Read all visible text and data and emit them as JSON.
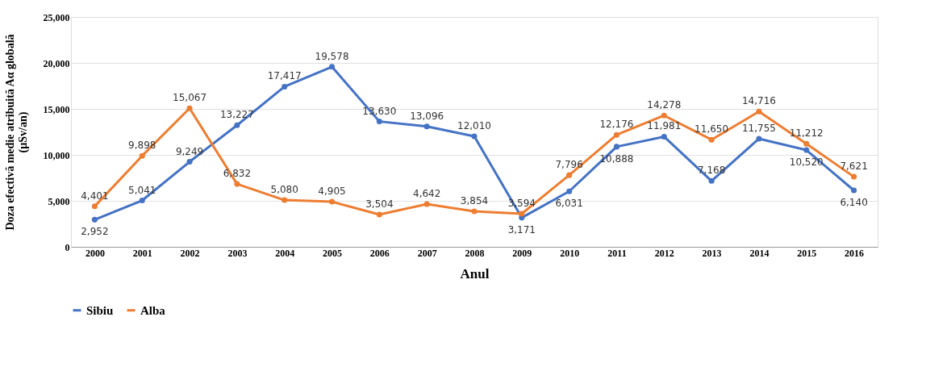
{
  "chart_data": {
    "type": "line",
    "xlabel": "Anul",
    "ylabel": "Doza efectivă medie atribuită Aα globală\n(µSv/an)",
    "categories": [
      "2000",
      "2001",
      "2002",
      "2003",
      "2004",
      "2005",
      "2006",
      "2007",
      "2008",
      "2009",
      "2010",
      "2011",
      "2012",
      "2013",
      "2014",
      "2015",
      "2016"
    ],
    "series": [
      {
        "name": "Sibiu",
        "color": "#4472c4",
        "values": [
          2952,
          5041,
          9249,
          13227,
          17417,
          19578,
          13630,
          13096,
          12010,
          3171,
          6031,
          10888,
          11981,
          7168,
          11755,
          10520,
          6140
        ],
        "value_labels": [
          "2,952",
          "5,041",
          "9,249",
          "13,227",
          "17,417",
          "19,578",
          "13,630",
          "13,096",
          "12,010",
          "3,171",
          "6,031",
          "10,888",
          "11,981",
          "7,168",
          "11,755",
          "10,520",
          "6,140"
        ]
      },
      {
        "name": "Alba",
        "color": "#ed7d31",
        "values": [
          4401,
          9898,
          15067,
          6832,
          5080,
          4905,
          3504,
          4642,
          3854,
          3594,
          7796,
          12176,
          14278,
          11650,
          14716,
          11212,
          7621
        ],
        "value_labels": [
          "4,401",
          "9,898",
          "15,067",
          "6,832",
          "5,080",
          "4,905",
          "3,504",
          "4,642",
          "3,854",
          "3,594",
          "7,796",
          "12,176",
          "14,278",
          "11,650",
          "14,716",
          "11,212",
          "7,621"
        ]
      }
    ],
    "ylim": [
      0,
      25000
    ],
    "yticks": [
      {
        "value": 0,
        "label": "0"
      },
      {
        "value": 5000,
        "label": "5,000"
      },
      {
        "value": 10000,
        "label": "10,000"
      },
      {
        "value": 15000,
        "label": "15,000"
      },
      {
        "value": 20000,
        "label": "20,000"
      },
      {
        "value": 25000,
        "label": "25,000"
      }
    ],
    "grid": "y",
    "legend": "bottom",
    "marker": "circle",
    "line_style": "solid"
  }
}
